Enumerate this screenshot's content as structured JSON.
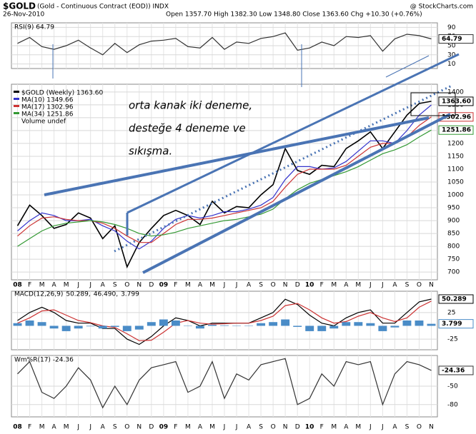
{
  "header": {
    "symbol": "$GOLD",
    "description": "(Gold - Continuous Contract (EOD)) INDX",
    "date": "26-Nov-2010",
    "quote": "Open 1357.70 High 1382.30 Low 1348.80 Close 1363.60 Chg +10.30 (+0.76%)",
    "source": "@ StockCharts.com"
  },
  "chart_data": [
    {
      "type": "line",
      "title": "RSI(9) 64.79",
      "grid": true,
      "categories": [
        "08",
        "F",
        "M",
        "A",
        "M",
        "J",
        "J",
        "A",
        "S",
        "O",
        "N",
        "D",
        "09",
        "F",
        "M",
        "A",
        "M",
        "J",
        "J",
        "A",
        "S",
        "O",
        "N",
        "D",
        "10",
        "F",
        "M",
        "A",
        "M",
        "J",
        "J",
        "A",
        "S",
        "O",
        "N"
      ],
      "ylim": [
        0,
        100
      ],
      "yticks": [
        10,
        30,
        50,
        70,
        90
      ],
      "series": [
        {
          "name": "RSI(9)",
          "color": "#333333",
          "last_value_label": "64.79",
          "values": [
            55,
            68,
            48,
            42,
            50,
            62,
            45,
            30,
            55,
            35,
            52,
            60,
            62,
            66,
            48,
            45,
            68,
            42,
            58,
            55,
            66,
            70,
            78,
            40,
            45,
            58,
            50,
            70,
            68,
            72,
            38,
            65,
            75,
            72,
            64.79
          ]
        }
      ]
    },
    {
      "type": "line",
      "grid": true,
      "extra_legend": "Volume undef",
      "annotations": [
        "orta kanak iki deneme,",
        "desteğe 4 deneme ve",
        "sıkışma."
      ],
      "categories": [
        "08",
        "F",
        "M",
        "A",
        "M",
        "J",
        "J",
        "A",
        "S",
        "O",
        "N",
        "D",
        "09",
        "F",
        "M",
        "A",
        "M",
        "J",
        "J",
        "A",
        "S",
        "O",
        "N",
        "D",
        "10",
        "F",
        "M",
        "A",
        "M",
        "J",
        "J",
        "A",
        "S",
        "O",
        "N"
      ],
      "ylim": [
        670,
        1430
      ],
      "yticks": [
        700,
        750,
        800,
        850,
        900,
        950,
        1000,
        1050,
        1100,
        1150,
        1200,
        1250,
        1300,
        1350,
        1400
      ],
      "series": [
        {
          "name": "$GOLD (Weekly) 1363.60",
          "color": "#000000",
          "last_value_label": "1363.60",
          "values": [
            880,
            960,
            920,
            870,
            885,
            930,
            910,
            830,
            880,
            720,
            815,
            870,
            920,
            940,
            920,
            885,
            975,
            930,
            955,
            950,
            1000,
            1040,
            1180,
            1095,
            1080,
            1115,
            1110,
            1180,
            1210,
            1245,
            1180,
            1245,
            1310,
            1355,
            1363.6
          ]
        },
        {
          "name": "MA(10) 1349.66",
          "color": "#3333cc",
          "values": [
            860,
            900,
            930,
            920,
            900,
            900,
            905,
            880,
            860,
            820,
            790,
            820,
            870,
            905,
            920,
            910,
            920,
            935,
            935,
            945,
            960,
            990,
            1060,
            1110,
            1110,
            1100,
            1105,
            1130,
            1170,
            1210,
            1210,
            1200,
            1250,
            1310,
            1349.66
          ]
        },
        {
          "name": "MA(17) 1302.96",
          "color": "#cc3333",
          "last_value_label": "1302.96",
          "values": [
            840,
            880,
            910,
            915,
            905,
            900,
            900,
            890,
            870,
            840,
            815,
            815,
            850,
            885,
            905,
            905,
            910,
            920,
            930,
            940,
            950,
            975,
            1030,
            1080,
            1100,
            1100,
            1100,
            1115,
            1150,
            1185,
            1200,
            1200,
            1225,
            1270,
            1302.96
          ]
        },
        {
          "name": "MA(34) 1251.86",
          "color": "#339933",
          "last_value_label": "1251.86",
          "values": [
            800,
            830,
            860,
            880,
            890,
            895,
            900,
            895,
            885,
            870,
            850,
            840,
            845,
            855,
            870,
            880,
            890,
            900,
            905,
            915,
            925,
            945,
            985,
            1020,
            1045,
            1060,
            1075,
            1090,
            1110,
            1135,
            1160,
            1175,
            1195,
            1225,
            1251.86
          ]
        }
      ]
    },
    {
      "type": "line",
      "title": "MACD(12,26,9)",
      "grid": true,
      "categories": [
        "08",
        "F",
        "M",
        "A",
        "M",
        "J",
        "J",
        "A",
        "S",
        "O",
        "N",
        "D",
        "09",
        "F",
        "M",
        "A",
        "M",
        "J",
        "J",
        "A",
        "S",
        "O",
        "N",
        "D",
        "10",
        "F",
        "M",
        "A",
        "M",
        "J",
        "J",
        "A",
        "S",
        "O",
        "N"
      ],
      "ylim": [
        -45,
        65
      ],
      "yticks": [
        -25,
        25
      ],
      "series": [
        {
          "name": "50.289,",
          "color": "#000000",
          "last_value_label": "50.289",
          "values": [
            10,
            25,
            35,
            25,
            10,
            5,
            5,
            -5,
            -5,
            -25,
            -35,
            -20,
            0,
            15,
            10,
            0,
            5,
            5,
            5,
            5,
            15,
            25,
            50,
            40,
            20,
            5,
            0,
            15,
            25,
            30,
            5,
            5,
            25,
            45,
            50.289
          ]
        },
        {
          "name": "46.490,",
          "color": "#cc3333",
          "values": [
            5,
            15,
            28,
            30,
            20,
            10,
            6,
            0,
            -3,
            -15,
            -28,
            -27,
            -12,
            5,
            10,
            5,
            3,
            4,
            5,
            5,
            10,
            18,
            38,
            42,
            30,
            15,
            5,
            8,
            18,
            25,
            15,
            8,
            15,
            35,
            46.49
          ]
        },
        {
          "name": "3.799",
          "color": "#4a8cc7",
          "kind": "bar",
          "last_value_label": "3.799",
          "values": [
            5,
            10,
            7,
            -5,
            -10,
            -5,
            -1,
            -5,
            -2,
            -10,
            -7,
            7,
            12,
            10,
            0,
            -5,
            2,
            1,
            0,
            0,
            5,
            7,
            12,
            -2,
            -10,
            -10,
            -5,
            7,
            7,
            5,
            -10,
            -3,
            10,
            10,
            3.799
          ]
        }
      ]
    },
    {
      "type": "line",
      "title": "Wm%R(17) -24.36",
      "grid": true,
      "categories": [
        "08",
        "F",
        "M",
        "A",
        "M",
        "J",
        "J",
        "A",
        "S",
        "O",
        "N",
        "D",
        "09",
        "F",
        "M",
        "A",
        "M",
        "J",
        "J",
        "A",
        "S",
        "O",
        "N",
        "D",
        "10",
        "F",
        "M",
        "A",
        "M",
        "J",
        "J",
        "A",
        "S",
        "O",
        "N"
      ],
      "ylim": [
        -100,
        0
      ],
      "yticks": [
        -80,
        -50
      ],
      "series": [
        {
          "name": "Wm%R(17)",
          "color": "#333333",
          "last_value_label": "-24.36",
          "values": [
            -30,
            -10,
            -60,
            -70,
            -50,
            -20,
            -40,
            -85,
            -50,
            -80,
            -40,
            -20,
            -15,
            -10,
            -60,
            -50,
            -10,
            -70,
            -30,
            -40,
            -15,
            -10,
            -5,
            -80,
            -70,
            -30,
            -50,
            -10,
            -15,
            -10,
            -80,
            -30,
            -10,
            -15,
            -24.36
          ]
        }
      ]
    }
  ]
}
